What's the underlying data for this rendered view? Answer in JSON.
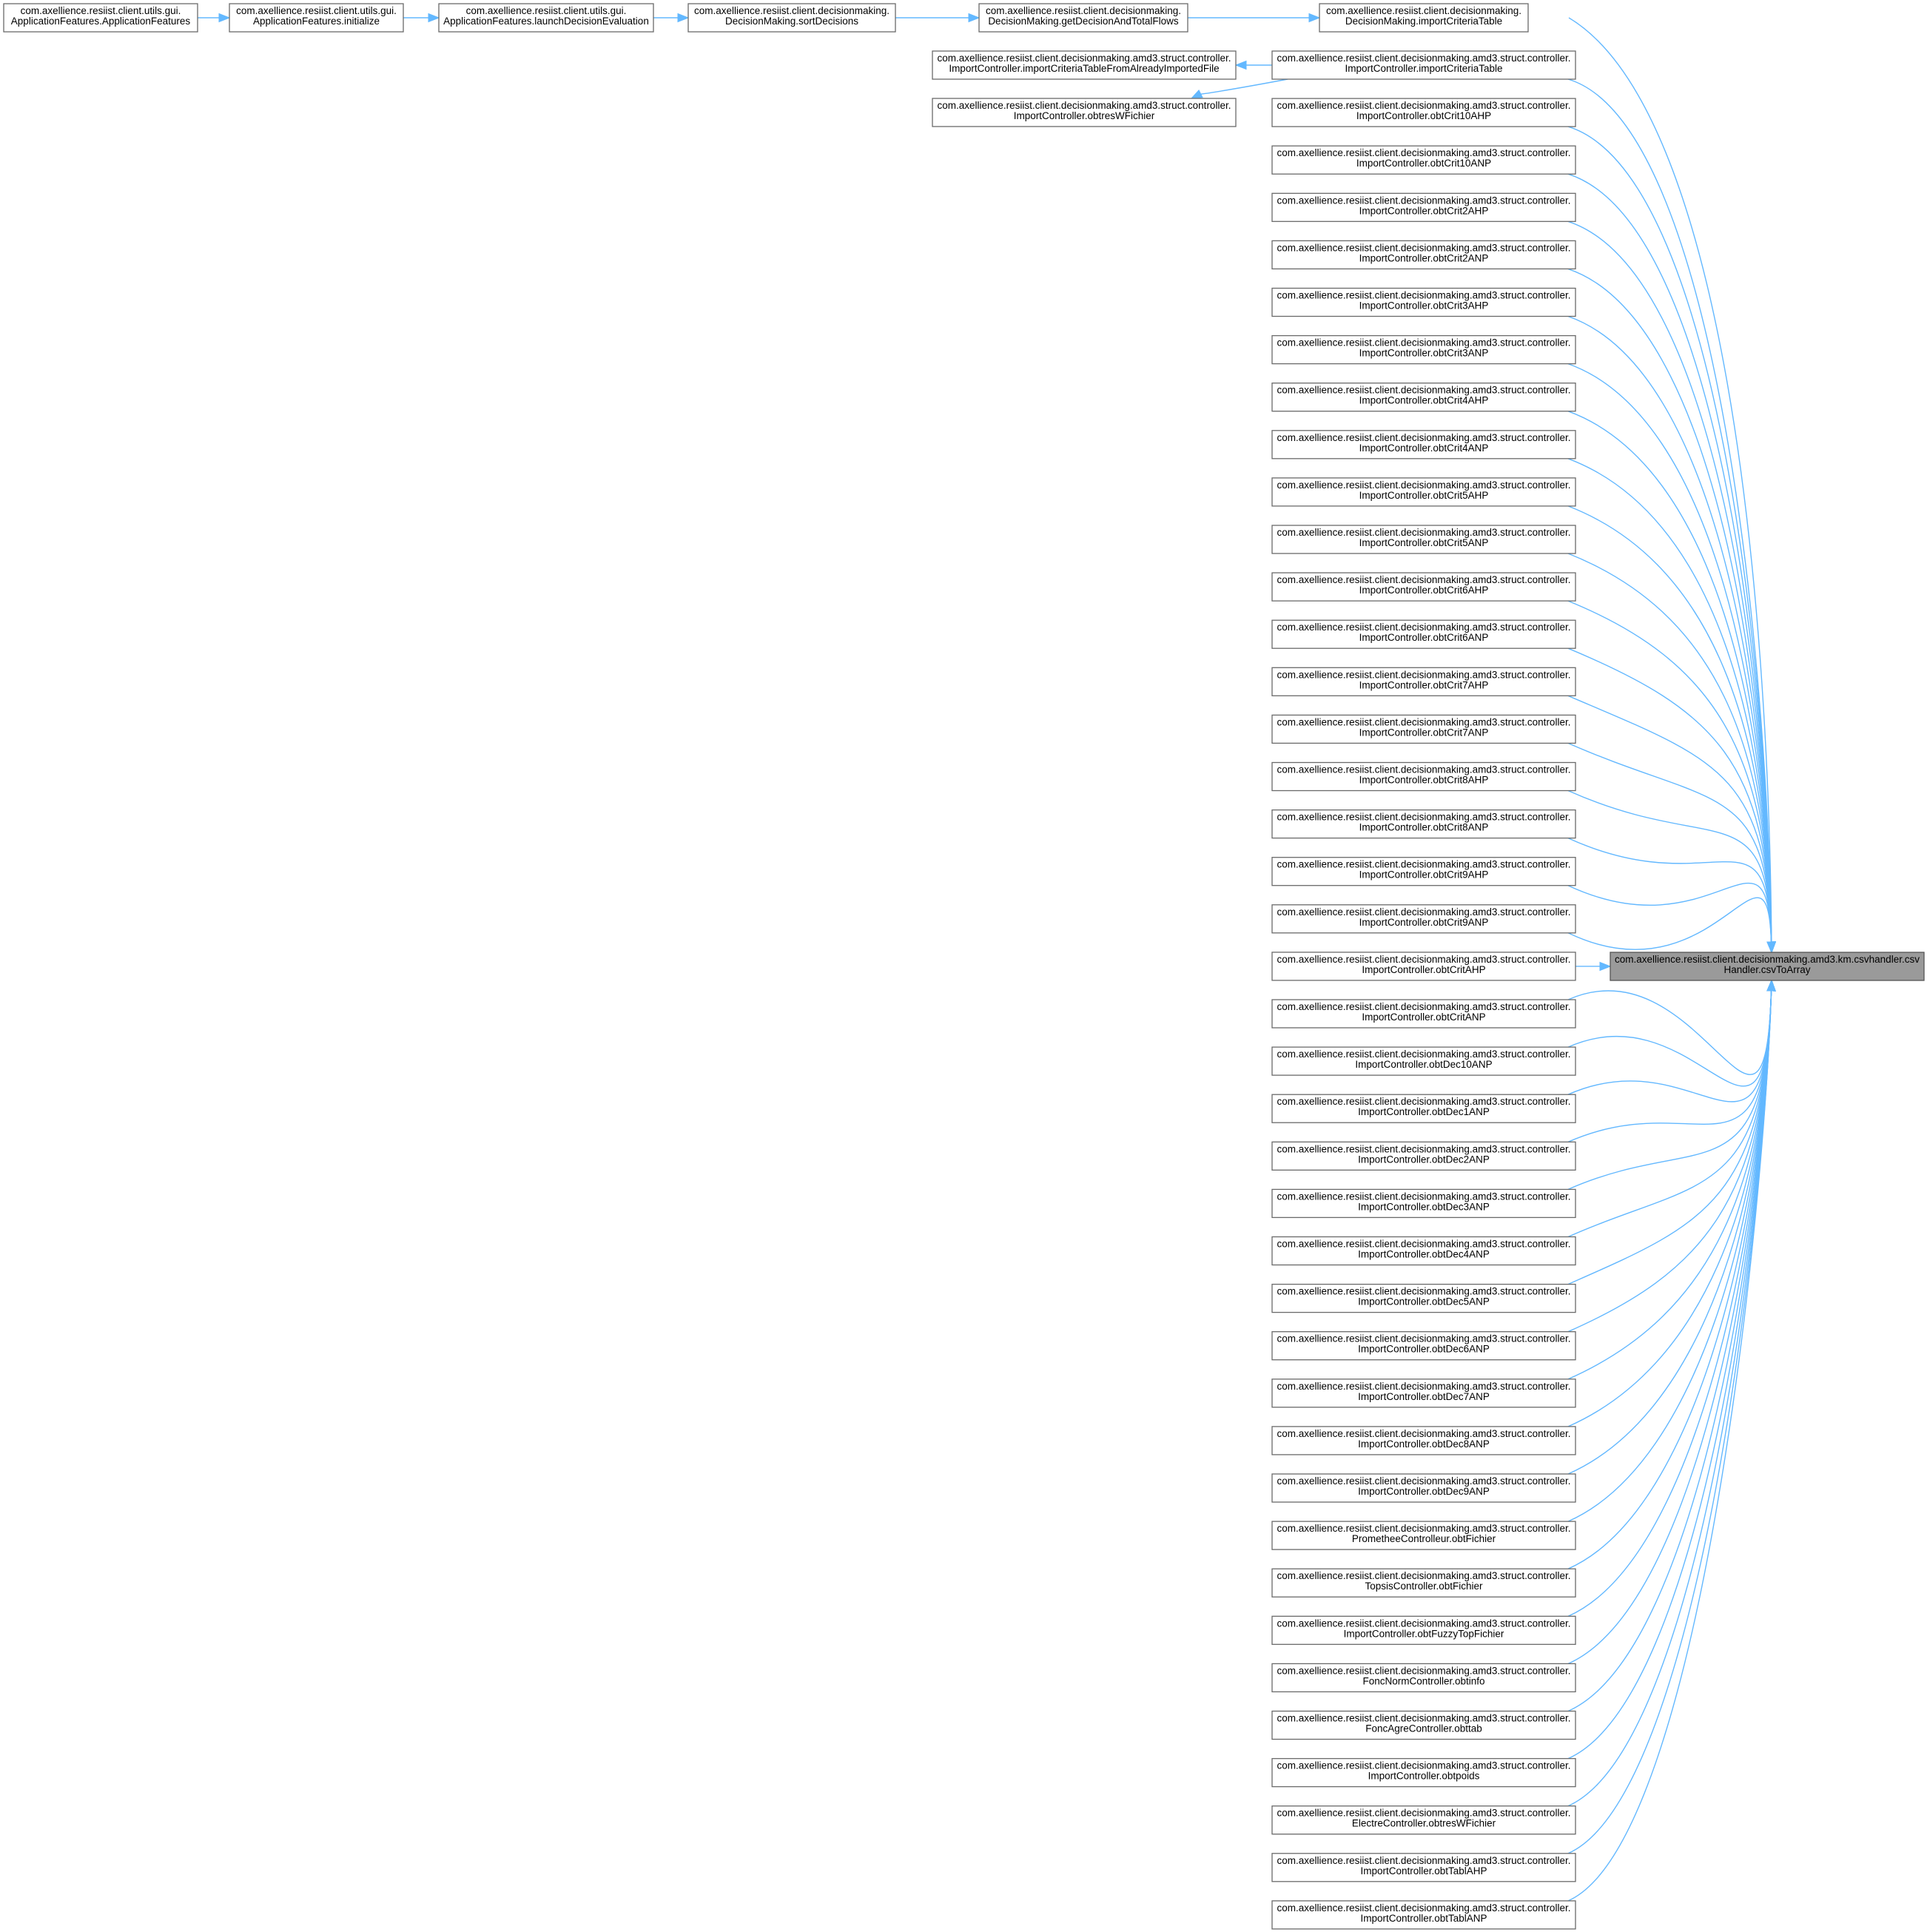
{
  "diagram": {
    "target": {
      "lines": [
        "com.axellience.resiist.client.decisionmaking.amd3.km.csvhandler.csv",
        "Handler.csvToArray"
      ]
    },
    "chain": [
      {
        "lines": [
          "com.axellience.resiist.client.utils.gui.",
          "ApplicationFeatures.ApplicationFeatures"
        ]
      },
      {
        "lines": [
          "com.axellience.resiist.client.utils.gui.",
          "ApplicationFeatures.initialize"
        ]
      },
      {
        "lines": [
          "com.axellience.resiist.client.utils.gui.",
          "ApplicationFeatures.launchDecisionEvaluation"
        ]
      },
      {
        "lines": [
          "com.axellience.resiist.client.decisionmaking.",
          "DecisionMaking.sortDecisions"
        ]
      },
      {
        "lines": [
          "com.axellience.resiist.client.decisionmaking.",
          "DecisionMaking.getDecisionAndTotalFlows"
        ]
      },
      {
        "lines": [
          "com.axellience.resiist.client.decisionmaking.",
          "DecisionMaking.importCriteriaTable"
        ]
      }
    ],
    "side_callers": [
      {
        "lines": [
          "com.axellience.resiist.client.decisionmaking.amd3.struct.controller.",
          "ImportController.importCriteriaTableFromAlreadyImportedFile"
        ]
      },
      {
        "lines": [
          "com.axellience.resiist.client.decisionmaking.amd3.struct.controller.",
          "ImportController.obtresWFichier"
        ]
      }
    ],
    "callers": [
      {
        "lines": [
          "com.axellience.resiist.client.decisionmaking.amd3.struct.controller.",
          "ImportController.importCriteriaTable"
        ]
      },
      {
        "lines": [
          "com.axellience.resiist.client.decisionmaking.amd3.struct.controller.",
          "ImportController.obtCrit10AHP"
        ]
      },
      {
        "lines": [
          "com.axellience.resiist.client.decisionmaking.amd3.struct.controller.",
          "ImportController.obtCrit10ANP"
        ]
      },
      {
        "lines": [
          "com.axellience.resiist.client.decisionmaking.amd3.struct.controller.",
          "ImportController.obtCrit2AHP"
        ]
      },
      {
        "lines": [
          "com.axellience.resiist.client.decisionmaking.amd3.struct.controller.",
          "ImportController.obtCrit2ANP"
        ]
      },
      {
        "lines": [
          "com.axellience.resiist.client.decisionmaking.amd3.struct.controller.",
          "ImportController.obtCrit3AHP"
        ]
      },
      {
        "lines": [
          "com.axellience.resiist.client.decisionmaking.amd3.struct.controller.",
          "ImportController.obtCrit3ANP"
        ]
      },
      {
        "lines": [
          "com.axellience.resiist.client.decisionmaking.amd3.struct.controller.",
          "ImportController.obtCrit4AHP"
        ]
      },
      {
        "lines": [
          "com.axellience.resiist.client.decisionmaking.amd3.struct.controller.",
          "ImportController.obtCrit4ANP"
        ]
      },
      {
        "lines": [
          "com.axellience.resiist.client.decisionmaking.amd3.struct.controller.",
          "ImportController.obtCrit5AHP"
        ]
      },
      {
        "lines": [
          "com.axellience.resiist.client.decisionmaking.amd3.struct.controller.",
          "ImportController.obtCrit5ANP"
        ]
      },
      {
        "lines": [
          "com.axellience.resiist.client.decisionmaking.amd3.struct.controller.",
          "ImportController.obtCrit6AHP"
        ]
      },
      {
        "lines": [
          "com.axellience.resiist.client.decisionmaking.amd3.struct.controller.",
          "ImportController.obtCrit6ANP"
        ]
      },
      {
        "lines": [
          "com.axellience.resiist.client.decisionmaking.amd3.struct.controller.",
          "ImportController.obtCrit7AHP"
        ]
      },
      {
        "lines": [
          "com.axellience.resiist.client.decisionmaking.amd3.struct.controller.",
          "ImportController.obtCrit7ANP"
        ]
      },
      {
        "lines": [
          "com.axellience.resiist.client.decisionmaking.amd3.struct.controller.",
          "ImportController.obtCrit8AHP"
        ]
      },
      {
        "lines": [
          "com.axellience.resiist.client.decisionmaking.amd3.struct.controller.",
          "ImportController.obtCrit8ANP"
        ]
      },
      {
        "lines": [
          "com.axellience.resiist.client.decisionmaking.amd3.struct.controller.",
          "ImportController.obtCrit9AHP"
        ]
      },
      {
        "lines": [
          "com.axellience.resiist.client.decisionmaking.amd3.struct.controller.",
          "ImportController.obtCrit9ANP"
        ]
      },
      {
        "lines": [
          "com.axellience.resiist.client.decisionmaking.amd3.struct.controller.",
          "ImportController.obtCritAHP"
        ]
      },
      {
        "lines": [
          "com.axellience.resiist.client.decisionmaking.amd3.struct.controller.",
          "ImportController.obtCritANP"
        ]
      },
      {
        "lines": [
          "com.axellience.resiist.client.decisionmaking.amd3.struct.controller.",
          "ImportController.obtDec10ANP"
        ]
      },
      {
        "lines": [
          "com.axellience.resiist.client.decisionmaking.amd3.struct.controller.",
          "ImportController.obtDec1ANP"
        ]
      },
      {
        "lines": [
          "com.axellience.resiist.client.decisionmaking.amd3.struct.controller.",
          "ImportController.obtDec2ANP"
        ]
      },
      {
        "lines": [
          "com.axellience.resiist.client.decisionmaking.amd3.struct.controller.",
          "ImportController.obtDec3ANP"
        ]
      },
      {
        "lines": [
          "com.axellience.resiist.client.decisionmaking.amd3.struct.controller.",
          "ImportController.obtDec4ANP"
        ]
      },
      {
        "lines": [
          "com.axellience.resiist.client.decisionmaking.amd3.struct.controller.",
          "ImportController.obtDec5ANP"
        ]
      },
      {
        "lines": [
          "com.axellience.resiist.client.decisionmaking.amd3.struct.controller.",
          "ImportController.obtDec6ANP"
        ]
      },
      {
        "lines": [
          "com.axellience.resiist.client.decisionmaking.amd3.struct.controller.",
          "ImportController.obtDec7ANP"
        ]
      },
      {
        "lines": [
          "com.axellience.resiist.client.decisionmaking.amd3.struct.controller.",
          "ImportController.obtDec8ANP"
        ]
      },
      {
        "lines": [
          "com.axellience.resiist.client.decisionmaking.amd3.struct.controller.",
          "ImportController.obtDec9ANP"
        ]
      },
      {
        "lines": [
          "com.axellience.resiist.client.decisionmaking.amd3.struct.controller.",
          "PrometheeControlleur.obtFichier"
        ]
      },
      {
        "lines": [
          "com.axellience.resiist.client.decisionmaking.amd3.struct.controller.",
          "TopsisController.obtFichier"
        ]
      },
      {
        "lines": [
          "com.axellience.resiist.client.decisionmaking.amd3.struct.controller.",
          "ImportController.obtFuzzyTopFichier"
        ]
      },
      {
        "lines": [
          "com.axellience.resiist.client.decisionmaking.amd3.struct.controller.",
          "FoncNormController.obtinfo"
        ]
      },
      {
        "lines": [
          "com.axellience.resiist.client.decisionmaking.amd3.struct.controller.",
          "FoncAgreController.obttab"
        ]
      },
      {
        "lines": [
          "com.axellience.resiist.client.decisionmaking.amd3.struct.controller.",
          "ImportController.obtpoids"
        ]
      },
      {
        "lines": [
          "com.axellience.resiist.client.decisionmaking.amd3.struct.controller.",
          "ElectreController.obtresWFichier"
        ]
      },
      {
        "lines": [
          "com.axellience.resiist.client.decisionmaking.amd3.struct.controller.",
          "ImportController.obtTablAHP"
        ]
      },
      {
        "lines": [
          "com.axellience.resiist.client.decisionmaking.amd3.struct.controller.",
          "ImportController.obtTablANP"
        ]
      }
    ],
    "colors": {
      "edge": "#63b8ff",
      "node_border": "#6a6a6a",
      "target_fill": "#9a9a9a",
      "background": "#ffffff"
    }
  }
}
